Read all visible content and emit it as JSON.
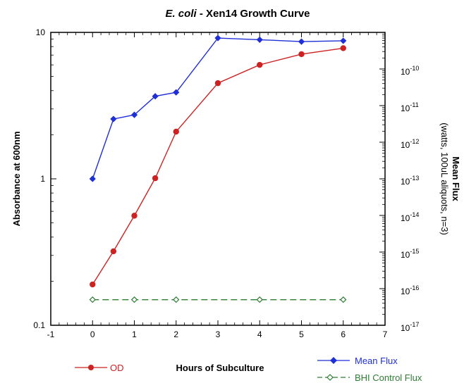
{
  "chart_data": {
    "type": "line",
    "title_italic": "E. coli",
    "title_rest": " - Xen14 Growth Curve",
    "xlabel": "Hours of Subculture",
    "ylabel": "Absorbance at 600nm",
    "y2label_line1": "Mean Flux",
    "y2label_line2": "(watts, 100uL aliquots, n=3)",
    "xlim": [
      -1,
      7
    ],
    "ylim": [
      0.1,
      10
    ],
    "y_scale": "log",
    "y2lim": [
      1e-17,
      1e-09
    ],
    "y2_scale": "log",
    "x_ticks": [
      "-1",
      "0",
      "1",
      "2",
      "3",
      "4",
      "5",
      "6",
      "7"
    ],
    "y_ticks": [
      {
        "value": 0.1,
        "label": "0.1"
      },
      {
        "value": 1,
        "label": "1"
      },
      {
        "value": 10,
        "label": "10"
      }
    ],
    "y2_ticks": [
      {
        "exp": -17,
        "label": "10",
        "sup": "-17"
      },
      {
        "exp": -16,
        "label": "10",
        "sup": "-16"
      },
      {
        "exp": -15,
        "label": "10",
        "sup": "-15"
      },
      {
        "exp": -14,
        "label": "10",
        "sup": "-14"
      },
      {
        "exp": -13,
        "label": "10",
        "sup": "-13"
      },
      {
        "exp": -12,
        "label": "10",
        "sup": "-12"
      },
      {
        "exp": -11,
        "label": "10",
        "sup": "-11"
      },
      {
        "exp": -10,
        "label": "10",
        "sup": "-10"
      }
    ],
    "grid": false,
    "series": [
      {
        "name": "OD",
        "axis": "left",
        "color": "#cc2222",
        "marker": "circle",
        "dash": "none",
        "x": [
          0,
          0.5,
          1,
          1.5,
          2,
          3,
          4,
          5,
          6
        ],
        "y": [
          0.19,
          0.32,
          0.56,
          1.01,
          2.1,
          4.5,
          6.0,
          7.1,
          7.8
        ]
      },
      {
        "name": "Mean Flux",
        "axis": "right",
        "color": "#1f2fd6",
        "marker": "diamond",
        "dash": "none",
        "x": [
          0,
          0.5,
          1,
          1.5,
          2,
          3,
          4,
          5,
          6
        ],
        "y": [
          1e-13,
          4.3e-12,
          5.6e-12,
          1.8e-11,
          2.3e-11,
          7e-10,
          6.3e-10,
          5.6e-10,
          5.9e-10
        ]
      },
      {
        "name": "BHI Control Flux",
        "axis": "right",
        "color": "#2e7d32",
        "marker": "open-diamond",
        "dash": "dashed",
        "x": [
          0,
          1,
          2,
          4,
          6
        ],
        "y": [
          5e-17,
          5e-17,
          5e-17,
          5e-17,
          5e-17
        ]
      }
    ],
    "legend_placement": "bottom"
  }
}
